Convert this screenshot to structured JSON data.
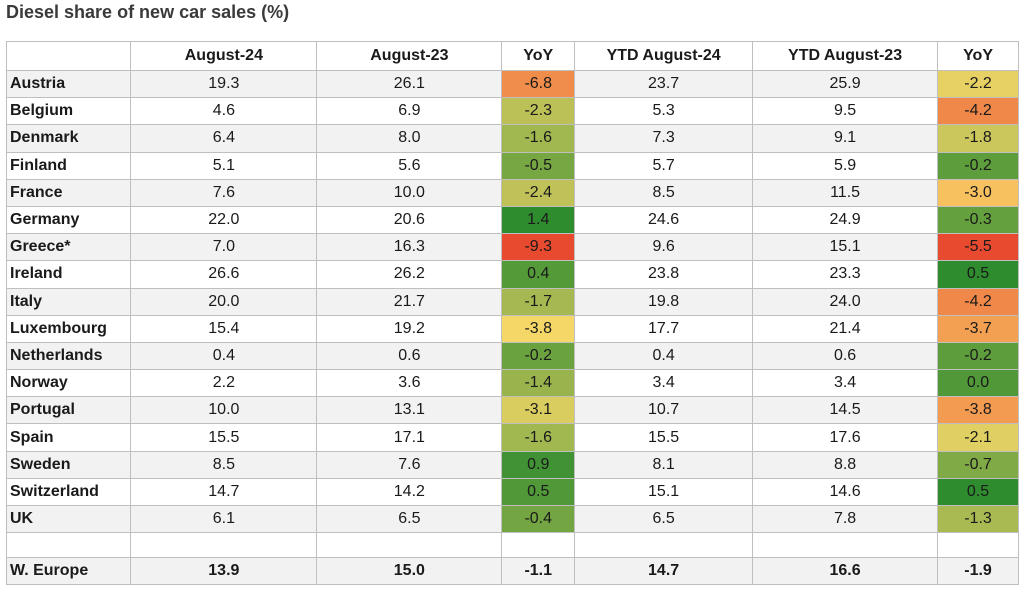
{
  "title": "Diesel share of new car sales (%)",
  "chart_data": {
    "type": "table",
    "columns": [
      "",
      "August-24",
      "August-23",
      "YoY",
      "YTD August-24",
      "YTD August-23",
      "YoY"
    ],
    "rows": [
      {
        "country": "Austria",
        "aug24": "19.3",
        "aug23": "26.1",
        "yoy": "-6.8",
        "ytd24": "23.7",
        "ytd23": "25.9",
        "ytd_yoy": "-2.2"
      },
      {
        "country": "Belgium",
        "aug24": "4.6",
        "aug23": "6.9",
        "yoy": "-2.3",
        "ytd24": "5.3",
        "ytd23": "9.5",
        "ytd_yoy": "-4.2"
      },
      {
        "country": "Denmark",
        "aug24": "6.4",
        "aug23": "8.0",
        "yoy": "-1.6",
        "ytd24": "7.3",
        "ytd23": "9.1",
        "ytd_yoy": "-1.8"
      },
      {
        "country": "Finland",
        "aug24": "5.1",
        "aug23": "5.6",
        "yoy": "-0.5",
        "ytd24": "5.7",
        "ytd23": "5.9",
        "ytd_yoy": "-0.2"
      },
      {
        "country": "France",
        "aug24": "7.6",
        "aug23": "10.0",
        "yoy": "-2.4",
        "ytd24": "8.5",
        "ytd23": "11.5",
        "ytd_yoy": "-3.0"
      },
      {
        "country": "Germany",
        "aug24": "22.0",
        "aug23": "20.6",
        "yoy": "1.4",
        "ytd24": "24.6",
        "ytd23": "24.9",
        "ytd_yoy": "-0.3"
      },
      {
        "country": "Greece*",
        "aug24": "7.0",
        "aug23": "16.3",
        "yoy": "-9.3",
        "ytd24": "9.6",
        "ytd23": "15.1",
        "ytd_yoy": "-5.5"
      },
      {
        "country": "Ireland",
        "aug24": "26.6",
        "aug23": "26.2",
        "yoy": "0.4",
        "ytd24": "23.8",
        "ytd23": "23.3",
        "ytd_yoy": "0.5"
      },
      {
        "country": "Italy",
        "aug24": "20.0",
        "aug23": "21.7",
        "yoy": "-1.7",
        "ytd24": "19.8",
        "ytd23": "24.0",
        "ytd_yoy": "-4.2"
      },
      {
        "country": "Luxembourg",
        "aug24": "15.4",
        "aug23": "19.2",
        "yoy": "-3.8",
        "ytd24": "17.7",
        "ytd23": "21.4",
        "ytd_yoy": "-3.7"
      },
      {
        "country": "Netherlands",
        "aug24": "0.4",
        "aug23": "0.6",
        "yoy": "-0.2",
        "ytd24": "0.4",
        "ytd23": "0.6",
        "ytd_yoy": "-0.2"
      },
      {
        "country": "Norway",
        "aug24": "2.2",
        "aug23": "3.6",
        "yoy": "-1.4",
        "ytd24": "3.4",
        "ytd23": "3.4",
        "ytd_yoy": "0.0"
      },
      {
        "country": "Portugal",
        "aug24": "10.0",
        "aug23": "13.1",
        "yoy": "-3.1",
        "ytd24": "10.7",
        "ytd23": "14.5",
        "ytd_yoy": "-3.8"
      },
      {
        "country": "Spain",
        "aug24": "15.5",
        "aug23": "17.1",
        "yoy": "-1.6",
        "ytd24": "15.5",
        "ytd23": "17.6",
        "ytd_yoy": "-2.1"
      },
      {
        "country": "Sweden",
        "aug24": "8.5",
        "aug23": "7.6",
        "yoy": "0.9",
        "ytd24": "8.1",
        "ytd23": "8.8",
        "ytd_yoy": "-0.7"
      },
      {
        "country": "Switzerland",
        "aug24": "14.7",
        "aug23": "14.2",
        "yoy": "0.5",
        "ytd24": "15.1",
        "ytd23": "14.6",
        "ytd_yoy": "0.5"
      },
      {
        "country": "UK",
        "aug24": "6.1",
        "aug23": "6.5",
        "yoy": "-0.4",
        "ytd24": "6.5",
        "ytd23": "7.8",
        "ytd_yoy": "-1.3"
      }
    ],
    "total": {
      "country": "W. Europe",
      "aug24": "13.9",
      "aug23": "15.0",
      "yoy": "-1.1",
      "ytd24": "14.7",
      "ytd23": "16.6",
      "ytd_yoy": "-1.9"
    },
    "color_scale": {
      "negative": "#e84a2f",
      "mid": "#fbd96a",
      "positive": "#2e8b2e"
    }
  }
}
